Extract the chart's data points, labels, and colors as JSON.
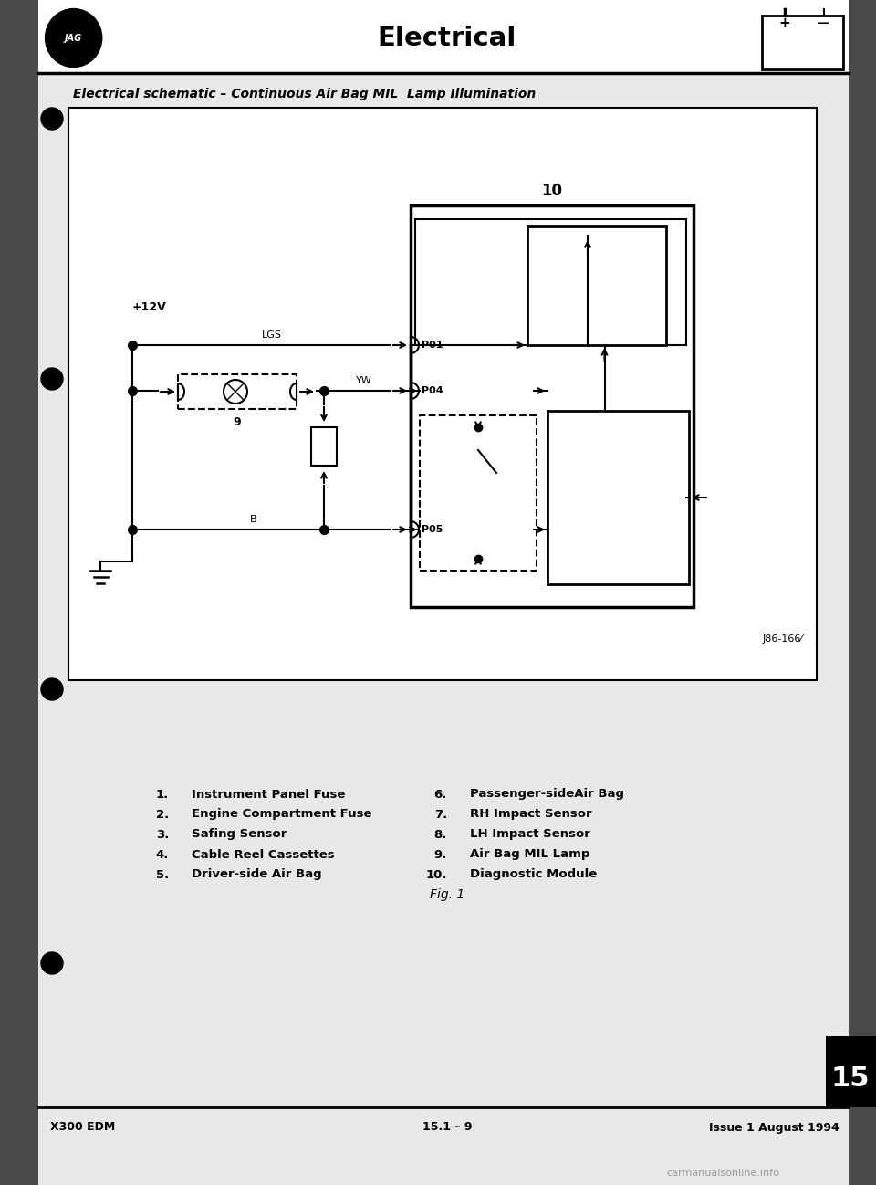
{
  "page_bg": "#d8d8d8",
  "content_bg": "#e8e8e8",
  "diagram_bg": "#ffffff",
  "header_title": "Electrical",
  "subtitle": "Electrical schematic – Continuous Air Bag MIL  Lamp Illumination",
  "figure_label": "Fig. 1",
  "ref_number": "J86-166⁄",
  "label_10": "10",
  "label_12v": "+12V",
  "label_lgs": "LGS",
  "label_yw": "YW",
  "label_b": "B",
  "label_p01": "P01",
  "label_p04": "P04",
  "label_p05": "P05",
  "label_9": "9",
  "legend_left": [
    [
      "1.",
      "Instrument Panel Fuse"
    ],
    [
      "2.",
      "Engine Compartment Fuse"
    ],
    [
      "3.",
      "Safing Sensor"
    ],
    [
      "4.",
      "Cable Reel Cassettes"
    ],
    [
      "5.",
      "Driver-side Air Bag"
    ]
  ],
  "legend_right": [
    [
      "6.",
      "Passenger-sideAir Bag"
    ],
    [
      "7.",
      "RH Impact Sensor"
    ],
    [
      "8.",
      "LH Impact Sensor"
    ],
    [
      "9.",
      "Air Bag MIL Lamp"
    ],
    [
      "10.",
      "Diagnostic Module"
    ]
  ],
  "footer_left": "X300 EDM",
  "footer_center": "15.1 – 9",
  "footer_right": "Issue 1 August 1994",
  "section_number": "15",
  "watermark": "carmanualsonline.info"
}
